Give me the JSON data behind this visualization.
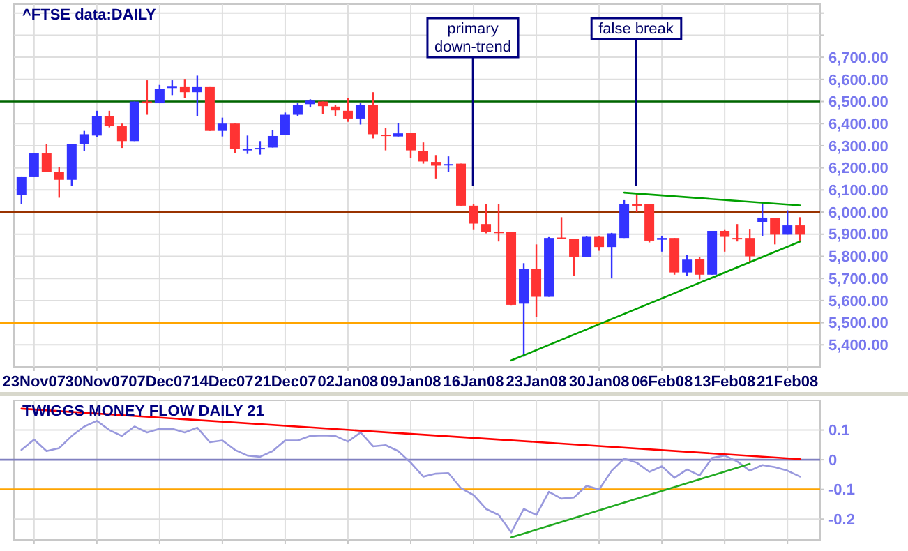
{
  "chart_data": [
    {
      "type": "candlestick",
      "title": "^FTSE data:DAILY",
      "categories": [
        null,
        "23Nov07",
        null,
        null,
        null,
        null,
        "30Nov07",
        null,
        null,
        null,
        null,
        "07Dec07",
        null,
        null,
        null,
        null,
        "14Dec07",
        null,
        null,
        null,
        null,
        "21Dec07",
        null,
        null,
        null,
        null,
        "02Jan08",
        null,
        null,
        null,
        null,
        "09Jan08",
        null,
        null,
        null,
        null,
        "16Jan08",
        null,
        null,
        null,
        null,
        "23Jan08",
        null,
        null,
        null,
        null,
        "30Jan08",
        null,
        null,
        null,
        null,
        "06Feb08",
        null,
        null,
        null,
        null,
        "13Feb08",
        null,
        null,
        null,
        null,
        "21Feb08",
        null
      ],
      "ohlc": [
        [
          6079,
          6158,
          6035,
          6158
        ],
        [
          6158,
          6265,
          6158,
          6265
        ],
        [
          6265,
          6308,
          6183,
          6183
        ],
        [
          6183,
          6202,
          6065,
          6146
        ],
        [
          6146,
          6308,
          6117,
          6308
        ],
        [
          6308,
          6367,
          6277,
          6352
        ],
        [
          6346,
          6458,
          6340,
          6433
        ],
        [
          6433,
          6458,
          6383,
          6388
        ],
        [
          6388,
          6400,
          6290,
          6321
        ],
        [
          6321,
          6500,
          6321,
          6500
        ],
        [
          6500,
          6596,
          6440,
          6492
        ],
        [
          6492,
          6575,
          6492,
          6558
        ],
        [
          6562,
          6596,
          6529,
          6567
        ],
        [
          6565,
          6602,
          6517,
          6542
        ],
        [
          6542,
          6617,
          6435,
          6565
        ],
        [
          6565,
          6565,
          6367,
          6367
        ],
        [
          6367,
          6427,
          6342,
          6400
        ],
        [
          6400,
          6400,
          6267,
          6285
        ],
        [
          6280,
          6346,
          6263,
          6285
        ],
        [
          6285,
          6321,
          6260,
          6290
        ],
        [
          6292,
          6371,
          6292,
          6344
        ],
        [
          6348,
          6450,
          6348,
          6440
        ],
        [
          6440,
          6492,
          6435,
          6483
        ],
        [
          6488,
          6510,
          6473,
          6504
        ],
        [
          6500,
          6500,
          6444,
          6479
        ],
        [
          6477,
          6483,
          6433,
          6460
        ],
        [
          6458,
          6515,
          6408,
          6423
        ],
        [
          6423,
          6492,
          6396,
          6485
        ],
        [
          6483,
          6542,
          6333,
          6352
        ],
        [
          6350,
          6381,
          6279,
          6344
        ],
        [
          6342,
          6402,
          6342,
          6356
        ],
        [
          6358,
          6358,
          6246,
          6279
        ],
        [
          6277,
          6315,
          6219,
          6229
        ],
        [
          6227,
          6258,
          6152,
          6210
        ],
        [
          6213,
          6252,
          6181,
          6217
        ],
        [
          6219,
          6219,
          6029,
          6029
        ],
        [
          6029,
          6035,
          5919,
          5948
        ],
        [
          5946,
          6035,
          5904,
          5911
        ],
        [
          5911,
          6035,
          5867,
          5906
        ],
        [
          5910,
          5910,
          5577,
          5581
        ],
        [
          5586,
          5769,
          5346,
          5744
        ],
        [
          5744,
          5854,
          5527,
          5617
        ],
        [
          5617,
          5887,
          5617,
          5883
        ],
        [
          5885,
          5977,
          5879,
          5881
        ],
        [
          5879,
          5879,
          5710,
          5798
        ],
        [
          5798,
          5890,
          5798,
          5888
        ],
        [
          5888,
          5890,
          5825,
          5842
        ],
        [
          5842,
          5906,
          5700,
          5904
        ],
        [
          5883,
          6054,
          5883,
          6035
        ],
        [
          6035,
          6088,
          6000,
          6031
        ],
        [
          6035,
          6035,
          5863,
          5871
        ],
        [
          5875,
          5892,
          5821,
          5883
        ],
        [
          5883,
          5883,
          5717,
          5727
        ],
        [
          5727,
          5806,
          5710,
          5785
        ],
        [
          5787,
          5796,
          5696,
          5717
        ],
        [
          5717,
          5915,
          5717,
          5915
        ],
        [
          5915,
          5919,
          5821,
          5888
        ],
        [
          5883,
          5946,
          5867,
          5879
        ],
        [
          5883,
          5921,
          5775,
          5800
        ],
        [
          5956,
          6044,
          5890,
          5975
        ],
        [
          5973,
          5973,
          5854,
          5898
        ],
        [
          5898,
          6008,
          5898,
          5940
        ],
        [
          5940,
          5977,
          5869,
          5898
        ]
      ],
      "colors": [
        "#3333ff",
        "#3333ff",
        "#ff3333",
        "#ff3333",
        "#3333ff",
        "#3333ff",
        "#3333ff",
        "#ff3333",
        "#ff3333",
        "#3333ff",
        "#ff3333",
        "#3333ff",
        "#3333ff",
        "#ff3333",
        "#3333ff",
        "#ff3333",
        "#3333ff",
        "#ff3333",
        "#3333ff",
        "#3333ff",
        "#3333ff",
        "#3333ff",
        "#3333ff",
        "#3333ff",
        "#ff3333",
        "#ff3333",
        "#ff3333",
        "#3333ff",
        "#ff3333",
        "#ff3333",
        "#3333ff",
        "#ff3333",
        "#ff3333",
        "#ff3333",
        "#3333ff",
        "#ff3333",
        "#ff3333",
        "#ff3333",
        "#ff3333",
        "#ff3333",
        "#3333ff",
        "#ff3333",
        "#3333ff",
        "#ff3333",
        "#ff3333",
        "#3333ff",
        "#ff3333",
        "#3333ff",
        "#3333ff",
        "#ff3333",
        "#ff3333",
        "#3333ff",
        "#ff3333",
        "#3333ff",
        "#ff3333",
        "#3333ff",
        "#ff3333",
        "#ff3333",
        "#ff3333",
        "#3333ff",
        "#ff3333",
        "#3333ff",
        "#ff3333"
      ],
      "series": [
        {
          "type": "line",
          "color": "#00a000",
          "values": [
            null,
            null,
            null,
            null,
            null,
            null,
            null,
            null,
            null,
            null,
            null,
            null,
            null,
            null,
            null,
            null,
            null,
            null,
            null,
            null,
            null,
            null,
            null,
            null,
            null,
            null,
            null,
            null,
            null,
            null,
            null,
            null,
            null,
            null,
            null,
            null,
            null,
            null,
            null,
            null,
            null,
            null,
            null,
            null,
            null,
            null,
            null,
            null,
            6088,
            null,
            null,
            null,
            null,
            null,
            null,
            null,
            null,
            null,
            null,
            null,
            null,
            null,
            6030
          ]
        },
        {
          "type": "line",
          "color": "#00a000",
          "values": [
            null,
            null,
            null,
            null,
            null,
            null,
            null,
            null,
            null,
            null,
            null,
            null,
            null,
            null,
            null,
            null,
            null,
            null,
            null,
            null,
            null,
            null,
            null,
            null,
            null,
            null,
            null,
            null,
            null,
            null,
            null,
            null,
            null,
            null,
            null,
            null,
            null,
            null,
            null,
            5329,
            null,
            null,
            null,
            null,
            null,
            null,
            null,
            null,
            null,
            null,
            null,
            null,
            null,
            null,
            null,
            null,
            null,
            null,
            null,
            null,
            null,
            null,
            5867
          ]
        }
      ],
      "ylim": [
        5300,
        6940
      ],
      "yticks": [
        {
          "value": 5400,
          "label": "5,400.00"
        },
        {
          "value": 5500,
          "label": "5,500.00"
        },
        {
          "value": 5600,
          "label": "5,600.00"
        },
        {
          "value": 5700,
          "label": "5,700.00"
        },
        {
          "value": 5800,
          "label": "5,800.00"
        },
        {
          "value": 5900,
          "label": "5,900.00"
        },
        {
          "value": 6000,
          "label": "6,000.00"
        },
        {
          "value": 6100,
          "label": "6,100.00"
        },
        {
          "value": 6200,
          "label": "6,200.00"
        },
        {
          "value": 6300,
          "label": "6,300.00"
        },
        {
          "value": 6400,
          "label": "6,400.00"
        },
        {
          "value": 6500,
          "label": "6,500.00"
        },
        {
          "value": 6600,
          "label": "6,600.00"
        },
        {
          "value": 6700,
          "label": "6,700.00"
        },
        {
          "value": 6800,
          "label": null
        },
        {
          "value": 6900,
          "label": null
        }
      ],
      "grid": true,
      "ref_lines": [
        {
          "axis": "y",
          "value": 6500,
          "color": "#006600"
        },
        {
          "axis": "y",
          "value": 6000,
          "color": "#993300"
        },
        {
          "axis": "y",
          "value": 5500,
          "color": "#ffa500"
        }
      ],
      "annotations": [
        "primary down-trend",
        "false break"
      ]
    },
    {
      "type": "line",
      "title": "TWIGGS MONEY FLOW DAILY 21",
      "categories": [
        null,
        null,
        null,
        null,
        null,
        null,
        null,
        null,
        null,
        null,
        null,
        null,
        null,
        null,
        null,
        null,
        null,
        null,
        null,
        null,
        null,
        null,
        null,
        null,
        null,
        null,
        null,
        null,
        null,
        null,
        null,
        null,
        null,
        null,
        null,
        null,
        null,
        null,
        null,
        null,
        null,
        null,
        null,
        null,
        null,
        null,
        null,
        null,
        null,
        null,
        null,
        null,
        null,
        null,
        null,
        null,
        null,
        null,
        null,
        null,
        null,
        null,
        null
      ],
      "series": [
        {
          "color": "#9999dd",
          "values": [
            0.033,
            0.068,
            0.029,
            0.039,
            0.08,
            0.112,
            0.131,
            0.1,
            0.08,
            0.112,
            0.092,
            0.104,
            0.104,
            0.092,
            0.108,
            0.059,
            0.065,
            0.033,
            0.014,
            0.01,
            0.029,
            0.065,
            0.065,
            0.08,
            0.082,
            0.08,
            0.061,
            0.092,
            0.045,
            0.049,
            0.029,
            -0.01,
            -0.057,
            -0.047,
            -0.045,
            -0.096,
            -0.119,
            -0.166,
            -0.186,
            -0.245,
            -0.166,
            -0.186,
            -0.108,
            -0.131,
            -0.127,
            -0.088,
            -0.1,
            -0.037,
            0.004,
            -0.01,
            -0.041,
            -0.022,
            -0.061,
            -0.033,
            -0.053,
            0.006,
            0.014,
            -0.006,
            -0.037,
            -0.018,
            -0.025,
            -0.037,
            -0.057
          ]
        },
        {
          "type": "line",
          "color": "#ff0000",
          "values": [
            0.172,
            null,
            null,
            null,
            null,
            null,
            null,
            null,
            null,
            null,
            null,
            null,
            null,
            null,
            null,
            null,
            null,
            null,
            null,
            null,
            null,
            null,
            null,
            null,
            null,
            null,
            null,
            null,
            null,
            null,
            null,
            null,
            null,
            null,
            null,
            null,
            null,
            null,
            null,
            null,
            null,
            null,
            null,
            null,
            null,
            null,
            null,
            null,
            null,
            null,
            null,
            null,
            null,
            null,
            null,
            null,
            null,
            null,
            null,
            null,
            null,
            null,
            0.002
          ]
        },
        {
          "type": "line",
          "color": "#22aa22",
          "values": [
            null,
            null,
            null,
            null,
            null,
            null,
            null,
            null,
            null,
            null,
            null,
            null,
            null,
            null,
            null,
            null,
            null,
            null,
            null,
            null,
            null,
            null,
            null,
            null,
            null,
            null,
            null,
            null,
            null,
            null,
            null,
            null,
            null,
            null,
            null,
            null,
            null,
            null,
            null,
            -0.262,
            null,
            null,
            null,
            null,
            null,
            null,
            null,
            null,
            null,
            null,
            null,
            null,
            null,
            null,
            null,
            null,
            null,
            null,
            -0.014,
            null,
            null,
            null,
            null
          ]
        }
      ],
      "ylim": [
        -0.27,
        0.2
      ],
      "yticks": [
        -0.2,
        -0.1,
        0,
        0.1
      ],
      "tick_labels": "y",
      "grid": true,
      "ref_lines": [
        {
          "axis": "y",
          "value": 0,
          "color": "#8080c0"
        },
        {
          "axis": "y",
          "value": -0.1,
          "color": "#ffa500"
        }
      ]
    }
  ]
}
